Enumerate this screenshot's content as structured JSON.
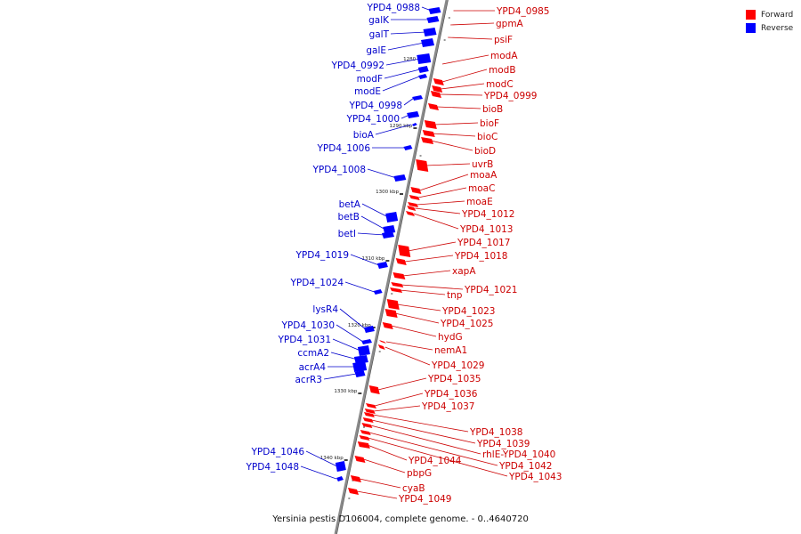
{
  "legend": {
    "forward": {
      "label": "Forward",
      "color": "#ff0000"
    },
    "reverse": {
      "label": "Reverse",
      "color": "#0000ff"
    }
  },
  "caption": "Yersinia pestis D106004, complete genome. - 0..4640720",
  "ticks": [
    "1280 kbp",
    "1290 kbp",
    "1300 kbp",
    "1310 kbp",
    "1320 kbp",
    "1330 kbp",
    "1340 kbp"
  ],
  "reverse_genes": [
    "YPD4_0988",
    "galK",
    "galT",
    "galE",
    "YPD4_0992",
    "modF",
    "modE",
    "YPD4_0998",
    "YPD4_1000",
    "bioA",
    "YPD4_1006",
    "YPD4_1008",
    "betA",
    "betB",
    "betI",
    "YPD4_1019",
    "YPD4_1024",
    "lysR4",
    "YPD4_1030",
    "YPD4_1031",
    "ccmA2",
    "acrA4",
    "acrR3",
    "YPD4_1046",
    "YPD4_1048"
  ],
  "forward_genes": [
    "YPD4_0985",
    "gpmA",
    "psiF",
    "modA",
    "modB",
    "modC",
    "YPD4_0999",
    "bioB",
    "bioF",
    "bioC",
    "bioD",
    "uvrB",
    "moaA",
    "moaC",
    "moaE",
    "YPD4_1012",
    "YPD4_1013",
    "YPD4_1017",
    "YPD4_1018",
    "xapA",
    "YPD4_1021",
    "tnp",
    "YPD4_1023",
    "YPD4_1025",
    "hydG",
    "nemA1",
    "YPD4_1029",
    "YPD4_1035",
    "YPD4_1036",
    "YPD4_1037",
    "YPD4_1038",
    "YPD4_1039",
    "rhlE-YPD4_1040",
    "YPD4_1042",
    "YPD4_1043",
    "YPD4_1044",
    "pbpG",
    "cyaB",
    "YPD4_1049"
  ]
}
